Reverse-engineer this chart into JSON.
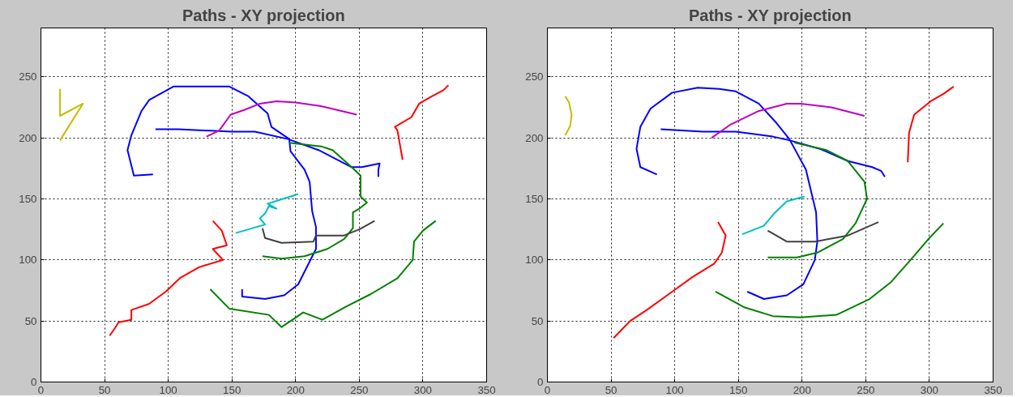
{
  "chart_data": [
    {
      "type": "line",
      "title": "Paths - XY projection",
      "xlim": [
        0,
        350
      ],
      "ylim": [
        0,
        290
      ],
      "xticks": [
        0,
        50,
        100,
        150,
        200,
        250,
        300,
        350
      ],
      "yticks": [
        0,
        50,
        100,
        150,
        200,
        250
      ],
      "grid": true,
      "series": [
        {
          "color": "#bfbf00",
          "x": [
            15,
            15,
            33,
            15
          ],
          "values": [
            240,
            218,
            228,
            198
          ]
        },
        {
          "color": "#0000ff",
          "x": [
            88,
            73,
            68,
            71,
            79,
            85,
            104,
            128,
            148,
            163,
            178,
            181,
            195,
            196,
            207,
            211,
            213,
            216,
            216,
            202,
            191,
            176,
            158,
            158
          ],
          "values": [
            170,
            169,
            190,
            202,
            222,
            231,
            242,
            242,
            242,
            234,
            220,
            209,
            199,
            189,
            174,
            164,
            140,
            127,
            109,
            80,
            71,
            68,
            70,
            76
          ]
        },
        {
          "color": "#0000ff",
          "x": [
            90,
            108,
            150,
            168,
            194,
            218,
            244,
            252,
            266,
            265,
            265
          ],
          "values": [
            207,
            207,
            205,
            205,
            199,
            190,
            176,
            176,
            179,
            174,
            168
          ]
        },
        {
          "color": "#bf00bf",
          "x": [
            130,
            140,
            149,
            160,
            172,
            185,
            200,
            220,
            248
          ],
          "values": [
            201,
            206,
            219,
            223,
            228,
            230,
            229,
            226,
            219
          ]
        },
        {
          "color": "#ff0000",
          "x": [
            284,
            280,
            278,
            291,
            297,
            307,
            316,
            320
          ],
          "values": [
            182,
            206,
            209,
            217,
            228,
            234,
            239,
            243
          ]
        },
        {
          "color": "#008000",
          "x": [
            195,
            220,
            229,
            244,
            251,
            251,
            256,
            250,
            245,
            245,
            238,
            225,
            207,
            189,
            174
          ],
          "values": [
            196,
            193,
            190,
            176,
            169,
            152,
            147,
            142,
            139,
            126,
            117,
            109,
            103,
            101,
            103
          ]
        },
        {
          "color": "#008000",
          "x": [
            133,
            148,
            179,
            189,
            206,
            221,
            240,
            259,
            280,
            292,
            293,
            300,
            310
          ],
          "values": [
            76,
            60,
            55,
            45,
            57,
            51,
            62,
            72,
            85,
            100,
            115,
            124,
            132
          ]
        },
        {
          "color": "#ff0000",
          "x": [
            54,
            58,
            61,
            71,
            71,
            85,
            98,
            109,
            124,
            143,
            135,
            146,
            142,
            135
          ],
          "values": [
            38,
            44,
            49,
            51,
            59,
            64,
            74,
            85,
            94,
            100,
            109,
            112,
            124,
            132
          ]
        },
        {
          "color": "#00bfbf",
          "x": [
            153,
            176,
            172,
            176,
            179,
            185,
            178,
            202
          ],
          "values": [
            122,
            129,
            134,
            138,
            144,
            142,
            146,
            154
          ]
        },
        {
          "color": "#404040",
          "x": [
            174,
            176,
            189,
            214,
            216,
            238,
            250,
            262
          ],
          "values": [
            126,
            118,
            114,
            115,
            120,
            120,
            125,
            132
          ]
        }
      ]
    },
    {
      "type": "line",
      "title": "Paths - XY projection",
      "xlim": [
        0,
        350
      ],
      "ylim": [
        0,
        290
      ],
      "xticks": [
        0,
        50,
        100,
        150,
        200,
        250,
        300,
        350
      ],
      "yticks": [
        0,
        50,
        100,
        150,
        200,
        250
      ],
      "grid": true,
      "series": [
        {
          "color": "#bfbf00",
          "x": [
            14,
            17,
            19,
            18,
            14
          ],
          "values": [
            234,
            229,
            219,
            210,
            202
          ]
        },
        {
          "color": "#0000ff",
          "x": [
            86,
            73,
            70,
            73,
            81,
            98,
            118,
            135,
            148,
            166,
            180,
            190,
            203,
            211,
            212,
            210,
            201,
            188,
            170,
            157
          ],
          "values": [
            170,
            176,
            191,
            209,
            224,
            237,
            241,
            240,
            238,
            228,
            212,
            199,
            174,
            139,
            115,
            100,
            80,
            71,
            68,
            74
          ]
        },
        {
          "color": "#0000ff",
          "x": [
            89,
            122,
            148,
            177,
            190,
            214,
            236,
            255,
            262,
            265
          ],
          "values": [
            207,
            205,
            205,
            201,
            198,
            191,
            181,
            176,
            173,
            168
          ]
        },
        {
          "color": "#bf00bf",
          "x": [
            129,
            144,
            166,
            188,
            199,
            223,
            249
          ],
          "values": [
            200,
            211,
            222,
            228,
            228,
            225,
            218
          ]
        },
        {
          "color": "#ff0000",
          "x": [
            283,
            284,
            288,
            301,
            311,
            319
          ],
          "values": [
            180,
            204,
            219,
            230,
            236,
            242
          ]
        },
        {
          "color": "#008000",
          "x": [
            194,
            219,
            236,
            249,
            251,
            242,
            232,
            212,
            196,
            173
          ],
          "values": [
            196,
            190,
            181,
            164,
            150,
            130,
            117,
            106,
            102,
            102
          ]
        },
        {
          "color": "#008000",
          "x": [
            132,
            155,
            177,
            199,
            227,
            253,
            270,
            286,
            300,
            311
          ],
          "values": [
            74,
            61,
            54,
            53,
            55,
            68,
            82,
            101,
            118,
            130
          ]
        },
        {
          "color": "#ff0000",
          "x": [
            52,
            65,
            78,
            98,
            114,
            131,
            137,
            140,
            134
          ],
          "values": [
            36,
            50,
            59,
            74,
            86,
            97,
            106,
            120,
            131
          ]
        },
        {
          "color": "#00bfbf",
          "x": [
            153,
            170,
            178,
            188,
            202
          ],
          "values": [
            121,
            128,
            138,
            148,
            152
          ]
        },
        {
          "color": "#404040",
          "x": [
            173,
            188,
            210,
            236,
            260
          ],
          "values": [
            124,
            115,
            115,
            120,
            131
          ]
        }
      ]
    }
  ]
}
